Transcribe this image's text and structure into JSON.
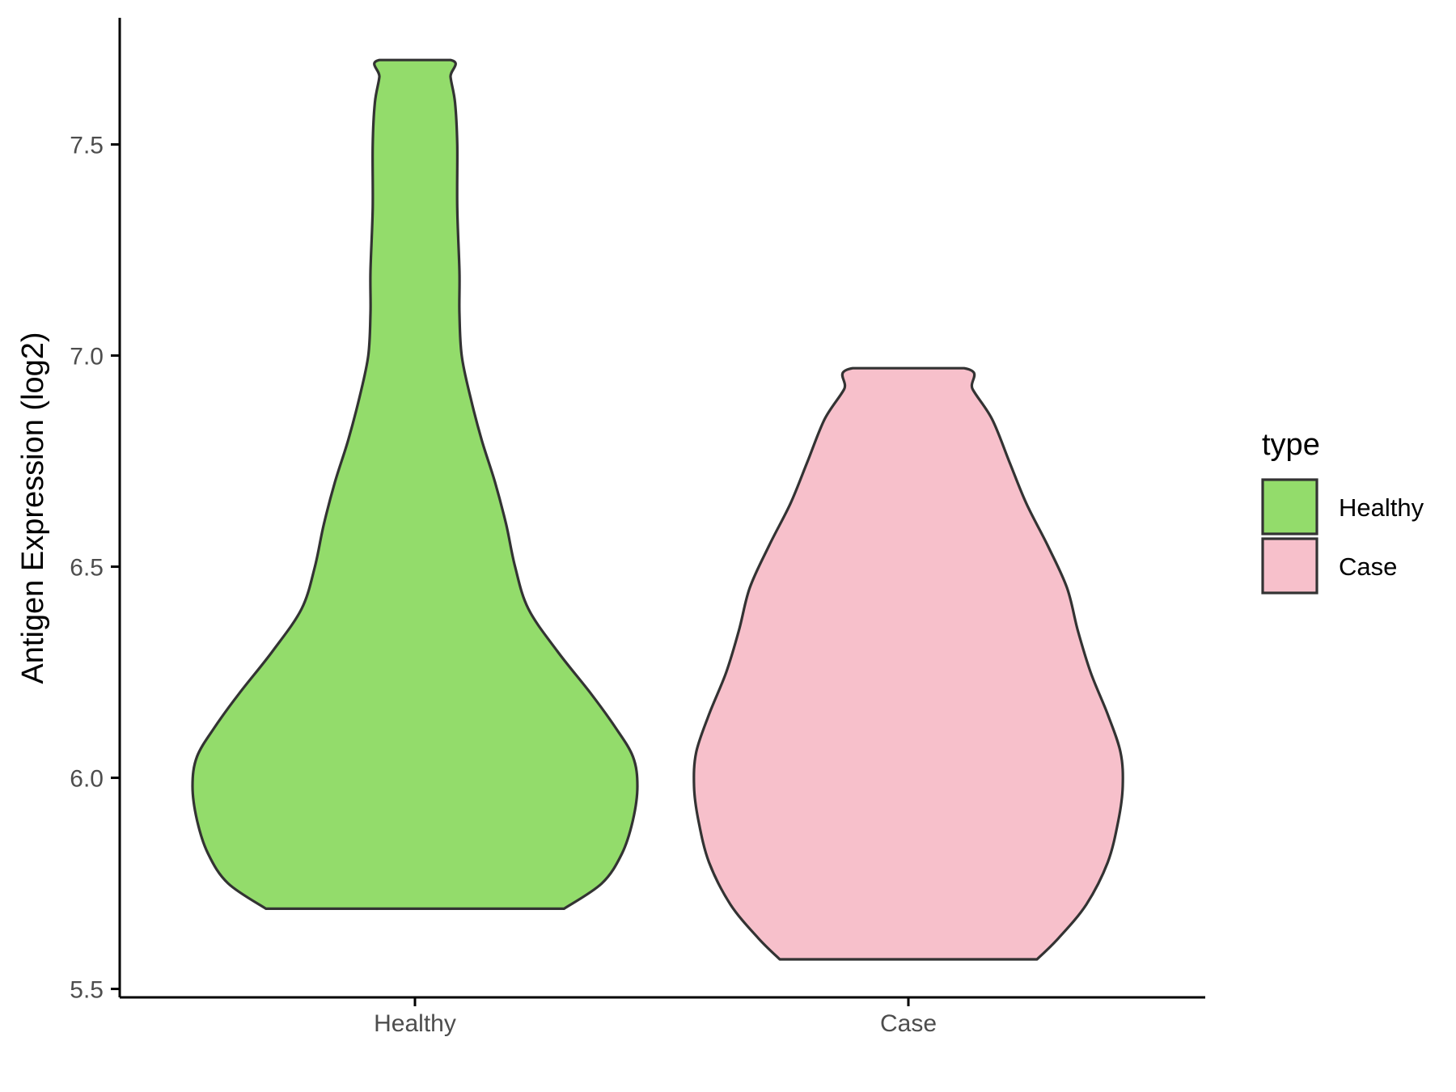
{
  "chart_data": {
    "type": "violin",
    "ylabel": "Antigen Expression (log2)",
    "xlabel": "",
    "ylim": [
      5.48,
      7.8
    ],
    "y_ticks": [
      5.5,
      6.0,
      6.5,
      7.0,
      7.5
    ],
    "y_tick_labels": [
      "5.5",
      "6.0",
      "6.5",
      "7.0",
      "7.5"
    ],
    "categories": [
      "Healthy",
      "Case"
    ],
    "legend": {
      "title": "type",
      "position": "right",
      "items": [
        {
          "label": "Healthy",
          "color": "#93dc6b"
        },
        {
          "label": "Case",
          "color": "#f7c0cb"
        }
      ]
    },
    "series": [
      {
        "category": "Healthy",
        "color": "#93dc6b",
        "min": 5.69,
        "max": 7.7,
        "density": [
          [
            5.69,
            0.67
          ],
          [
            5.75,
            0.84
          ],
          [
            5.82,
            0.93
          ],
          [
            5.9,
            0.98
          ],
          [
            5.98,
            1.0
          ],
          [
            6.05,
            0.98
          ],
          [
            6.12,
            0.9
          ],
          [
            6.2,
            0.79
          ],
          [
            6.3,
            0.64
          ],
          [
            6.4,
            0.51
          ],
          [
            6.5,
            0.45
          ],
          [
            6.6,
            0.41
          ],
          [
            6.7,
            0.36
          ],
          [
            6.8,
            0.3
          ],
          [
            6.9,
            0.25
          ],
          [
            7.0,
            0.21
          ],
          [
            7.1,
            0.2
          ],
          [
            7.2,
            0.2
          ],
          [
            7.35,
            0.19
          ],
          [
            7.5,
            0.19
          ],
          [
            7.6,
            0.18
          ],
          [
            7.66,
            0.16
          ],
          [
            7.7,
            0.16
          ]
        ]
      },
      {
        "category": "Case",
        "color": "#f7c0cb",
        "min": 5.57,
        "max": 6.97,
        "density": [
          [
            5.57,
            0.6
          ],
          [
            5.62,
            0.7
          ],
          [
            5.7,
            0.83
          ],
          [
            5.8,
            0.93
          ],
          [
            5.9,
            0.98
          ],
          [
            5.98,
            1.0
          ],
          [
            6.06,
            0.99
          ],
          [
            6.15,
            0.93
          ],
          [
            6.25,
            0.85
          ],
          [
            6.35,
            0.79
          ],
          [
            6.45,
            0.74
          ],
          [
            6.55,
            0.65
          ],
          [
            6.65,
            0.55
          ],
          [
            6.75,
            0.47
          ],
          [
            6.85,
            0.39
          ],
          [
            6.92,
            0.3
          ],
          [
            6.97,
            0.26
          ]
        ]
      }
    ]
  }
}
